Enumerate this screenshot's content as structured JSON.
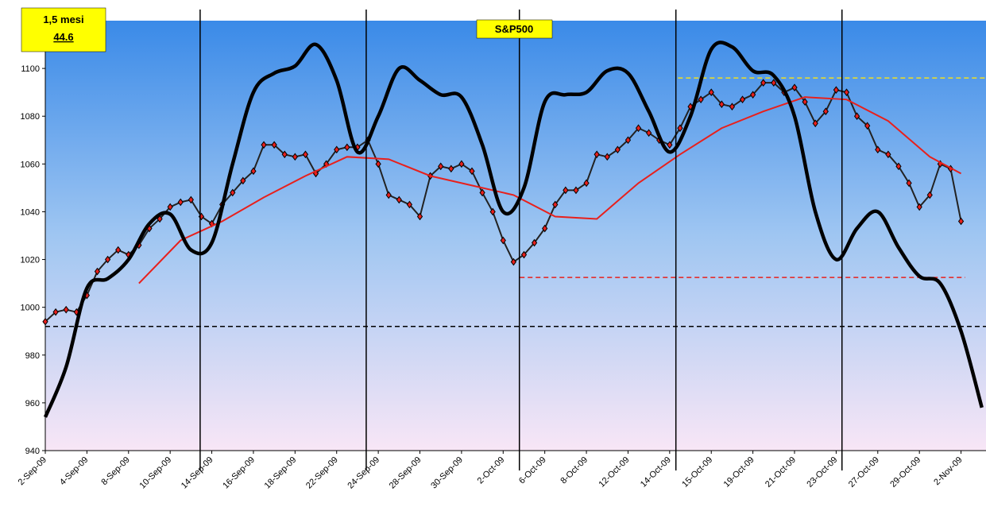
{
  "chart_data": {
    "type": "line",
    "title": "S&P500",
    "annotations": [
      "1,5 mesi",
      "44.6"
    ],
    "categories": [
      "2-Sep-09",
      "4-Sep-09",
      "8-Sep-09",
      "10-Sep-09",
      "14-Sep-09",
      "16-Sep-09",
      "18-Sep-09",
      "22-Sep-09",
      "24-Sep-09",
      "28-Sep-09",
      "30-Sep-09",
      "2-Oct-09",
      "6-Oct-09",
      "8-Oct-09",
      "12-Oct-09",
      "14-Oct-09",
      "15-Oct-09",
      "19-Oct-09",
      "21-Oct-09",
      "23-Oct-09",
      "27-Oct-09",
      "29-Oct-09",
      "2-Nov-09"
    ],
    "xlim": [
      0,
      22.6
    ],
    "ylim": [
      940,
      1120
    ],
    "yticks": [
      940,
      960,
      980,
      1000,
      1020,
      1040,
      1060,
      1080,
      1100,
      1120
    ],
    "series": [
      {
        "color": "#e8201c",
        "marker": "diamond",
        "x": [
          0,
          0.25,
          0.5,
          0.75,
          1,
          1.25,
          1.5,
          1.75,
          2,
          2.25,
          2.5,
          2.75,
          3,
          3.25,
          3.5,
          3.75,
          4,
          4.25,
          4.5,
          4.75,
          5,
          5.25,
          5.5,
          5.75,
          6,
          6.25,
          6.5,
          6.75,
          7,
          7.25,
          7.5,
          7.75,
          8,
          8.25,
          8.5,
          8.75,
          9,
          9.25,
          9.5,
          9.75,
          10,
          10.25,
          10.5,
          10.75,
          11,
          11.25,
          11.5,
          11.75,
          12,
          12.25,
          12.5,
          12.75,
          13,
          13.25,
          13.5,
          13.75,
          14,
          14.25,
          14.5,
          14.75,
          15,
          15.25,
          15.5,
          15.75,
          16,
          16.25,
          16.5,
          16.75,
          17,
          17.25,
          17.5,
          17.75,
          18,
          18.25,
          18.5,
          18.75,
          19,
          19.25,
          19.5,
          19.75,
          20,
          20.25,
          20.5,
          20.75,
          21,
          21.25,
          21.5,
          21.75,
          22
        ],
        "values": [
          994,
          998,
          999,
          998,
          1005,
          1015,
          1020,
          1024,
          1022,
          1026,
          1033,
          1037,
          1042,
          1044,
          1045,
          1038,
          1035,
          1043,
          1048,
          1053,
          1057,
          1068,
          1068,
          1064,
          1063,
          1064,
          1056,
          1060,
          1066,
          1067,
          1067,
          1070,
          1060,
          1047,
          1045,
          1043,
          1038,
          1055,
          1059,
          1058,
          1060,
          1057,
          1048,
          1040,
          1028,
          1019,
          1022,
          1027,
          1033,
          1043,
          1049,
          1049,
          1052,
          1064,
          1063,
          1066,
          1070,
          1075,
          1073,
          1070,
          1068,
          1075,
          1084,
          1087,
          1090,
          1085,
          1084,
          1087,
          1089,
          1094,
          1094,
          1090,
          1092,
          1086,
          1077,
          1082,
          1091,
          1090,
          1080,
          1076,
          1066,
          1064,
          1059,
          1052,
          1042,
          1047,
          1060,
          1058,
          1036
        ]
      },
      {
        "color": "#e8201c",
        "x": [
          2.25,
          3.25,
          4.25,
          5.25,
          6.25,
          7.25,
          8.25,
          9.25,
          10.25,
          11.25,
          12.25,
          13.25,
          14.25,
          15.25,
          16.25,
          17.25,
          18.25,
          19.25,
          20.25,
          21.25,
          22
        ],
        "values": [
          1010,
          1028,
          1036,
          1046,
          1055,
          1063,
          1062,
          1055,
          1051,
          1047,
          1038,
          1037,
          1052,
          1064,
          1075,
          1082,
          1088,
          1087,
          1078,
          1063,
          1056
        ]
      },
      {
        "color": "#000000",
        "smooth": true,
        "x": [
          0,
          0.5,
          1,
          1.5,
          2,
          2.5,
          3,
          3.5,
          4,
          4.5,
          5,
          5.5,
          6,
          6.5,
          7,
          7.5,
          8,
          8.5,
          9,
          9.5,
          10,
          10.5,
          11,
          11.5,
          12,
          12.5,
          13,
          13.5,
          14,
          14.5,
          15,
          15.5,
          16,
          16.5,
          17,
          17.5,
          18,
          18.5,
          19,
          19.5,
          20,
          20.5,
          21,
          21.5,
          22,
          22.5
        ],
        "values": [
          954,
          975,
          1008,
          1012,
          1020,
          1035,
          1039,
          1024,
          1027,
          1060,
          1090,
          1098,
          1101,
          1110,
          1095,
          1065,
          1080,
          1100,
          1095,
          1089,
          1088,
          1068,
          1040,
          1050,
          1086,
          1089,
          1090,
          1099,
          1098,
          1082,
          1065,
          1080,
          1108,
          1109,
          1099,
          1097,
          1080,
          1040,
          1020,
          1033,
          1040,
          1025,
          1013,
          1010,
          990,
          958
        ]
      }
    ],
    "hlines": [
      {
        "value": 992,
        "from": 0,
        "to": 22.6,
        "color": "#000000"
      },
      {
        "value": 1012.5,
        "from": 11.4,
        "to": 22.1,
        "color": "#e8201c"
      },
      {
        "value": 1096,
        "from": 15.2,
        "to": 22.6,
        "color": "#f0e020"
      }
    ],
    "vlines": [
      3.72,
      7.71,
      11.39,
      15.15,
      19.14
    ]
  }
}
